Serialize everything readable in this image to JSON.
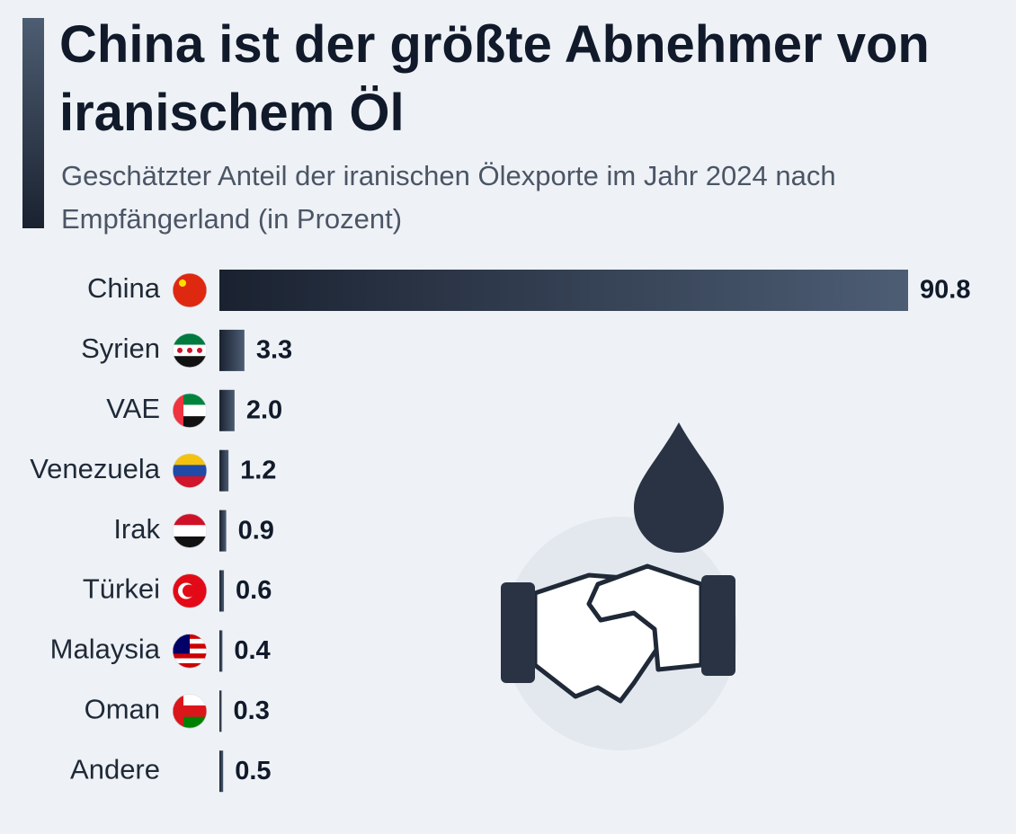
{
  "chart_data": {
    "type": "bar",
    "orientation": "horizontal",
    "title": "China ist der größte Abnehmer von iranischem Öl",
    "subtitle": "Geschätzter Anteil der iranischen Ölexporte im Jahr 2024 nach Empfängerland (in Prozent)",
    "categories": [
      "China",
      "Syrien",
      "VAE",
      "Venezuela",
      "Irak",
      "Türkei",
      "Malaysia",
      "Oman",
      "Andere"
    ],
    "values": [
      90.8,
      3.3,
      2.0,
      1.2,
      0.9,
      0.6,
      0.4,
      0.3,
      0.5
    ],
    "value_labels": [
      "90.8",
      "3.3",
      "2.0",
      "1.2",
      "0.9",
      "0.6",
      "0.4",
      "0.3",
      "0.5"
    ],
    "color": "#1c2533"
  }
}
